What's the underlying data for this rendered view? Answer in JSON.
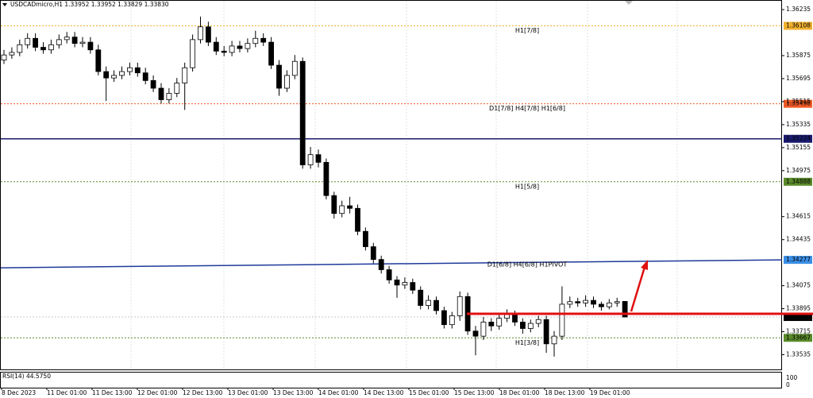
{
  "chart_data": {
    "type": "candlestick",
    "title": "USDCADmicro,H1  1.33952 1.33952 1.33829 1.33830",
    "open": [
      1.3584,
      1.3588,
      1.359,
      1.3596,
      1.3601,
      1.3594,
      1.3592,
      1.3596,
      1.36,
      1.3602,
      1.3597,
      1.3598,
      1.3592,
      1.3575,
      1.357,
      1.3572,
      1.3575,
      1.3578,
      1.3574,
      1.3568,
      1.3562,
      1.3553,
      1.3558,
      1.3566,
      1.3578,
      1.36,
      1.361,
      1.3598,
      1.3591,
      1.359,
      1.3595,
      1.3593,
      1.3597,
      1.3601,
      1.3598,
      1.358,
      1.3562,
      1.3572,
      1.3583,
      1.3502,
      1.351,
      1.3504,
      1.3478,
      1.3464,
      1.347,
      1.3468,
      1.345,
      1.3438,
      1.3428,
      1.342,
      1.3412,
      1.3408,
      1.341,
      1.3404,
      1.3392,
      1.3396,
      1.3388,
      1.3377,
      1.3384,
      1.3399,
      1.3372,
      1.3368,
      1.3379,
      1.3376,
      1.3382,
      1.3385,
      1.3379,
      1.3374,
      1.3378,
      1.3381,
      1.3362,
      1.3368,
      1.3393,
      1.3395,
      1.3394,
      1.3396,
      1.3393,
      1.3391,
      1.3394,
      1.33952
    ],
    "high": [
      1.3592,
      1.3594,
      1.36,
      1.3605,
      1.3605,
      1.3598,
      1.36,
      1.3604,
      1.3606,
      1.3606,
      1.3602,
      1.3602,
      1.3596,
      1.3579,
      1.3576,
      1.3579,
      1.3582,
      1.3582,
      1.3578,
      1.3572,
      1.3566,
      1.3562,
      1.357,
      1.3582,
      1.3604,
      1.3618,
      1.3614,
      1.3602,
      1.3595,
      1.3599,
      1.3599,
      1.3601,
      1.3607,
      1.3605,
      1.3602,
      1.3584,
      1.3576,
      1.3588,
      1.3586,
      1.3516,
      1.3514,
      1.3507,
      1.3481,
      1.3474,
      1.3477,
      1.3471,
      1.3453,
      1.3441,
      1.3431,
      1.3423,
      1.3415,
      1.3414,
      1.3413,
      1.3407,
      1.34,
      1.3399,
      1.3391,
      1.3387,
      1.3403,
      1.3402,
      1.3376,
      1.3383,
      1.3382,
      1.3386,
      1.3389,
      1.3388,
      1.3382,
      1.3381,
      1.3384,
      1.3384,
      1.3372,
      1.3407,
      1.3399,
      1.3398,
      1.34,
      1.3399,
      1.3395,
      1.3397,
      1.3398,
      1.33952
    ],
    "low": [
      1.3581,
      1.3585,
      1.3587,
      1.3593,
      1.3591,
      1.3589,
      1.3589,
      1.3593,
      1.3597,
      1.3594,
      1.3594,
      1.3589,
      1.3572,
      1.3552,
      1.3567,
      1.3569,
      1.3572,
      1.3571,
      1.3565,
      1.3559,
      1.355,
      1.355,
      1.3555,
      1.3545,
      1.3575,
      1.3597,
      1.3595,
      1.3588,
      1.3587,
      1.3587,
      1.359,
      1.359,
      1.3594,
      1.3595,
      1.3577,
      1.3556,
      1.3559,
      1.3569,
      1.3499,
      1.3499,
      1.35,
      1.3475,
      1.346,
      1.3461,
      1.3464,
      1.3447,
      1.3435,
      1.3425,
      1.3417,
      1.3409,
      1.3398,
      1.3405,
      1.3401,
      1.3389,
      1.3389,
      1.3385,
      1.3374,
      1.3374,
      1.338,
      1.3369,
      1.3353,
      1.3365,
      1.3372,
      1.3373,
      1.3379,
      1.3376,
      1.337,
      1.3371,
      1.3375,
      1.3355,
      1.3352,
      1.3365,
      1.339,
      1.3391,
      1.3391,
      1.339,
      1.3388,
      1.3389,
      1.3391,
      1.33829
    ],
    "close": [
      1.3588,
      1.359,
      1.3596,
      1.3601,
      1.3594,
      1.3592,
      1.3596,
      1.36,
      1.3602,
      1.3597,
      1.3598,
      1.3592,
      1.3575,
      1.357,
      1.3572,
      1.3575,
      1.3578,
      1.3574,
      1.3568,
      1.3562,
      1.3553,
      1.3558,
      1.3566,
      1.3578,
      1.36,
      1.361,
      1.3598,
      1.3591,
      1.359,
      1.3595,
      1.3593,
      1.3597,
      1.3601,
      1.3598,
      1.358,
      1.3562,
      1.3572,
      1.3583,
      1.3502,
      1.351,
      1.3504,
      1.3478,
      1.3464,
      1.347,
      1.3468,
      1.345,
      1.3438,
      1.3428,
      1.342,
      1.3412,
      1.3408,
      1.341,
      1.3404,
      1.3392,
      1.3396,
      1.3388,
      1.3377,
      1.3384,
      1.3399,
      1.3372,
      1.3368,
      1.3379,
      1.3376,
      1.3382,
      1.3385,
      1.3379,
      1.3374,
      1.3378,
      1.3381,
      1.3362,
      1.3368,
      1.3393,
      1.3395,
      1.3394,
      1.3396,
      1.3393,
      1.3391,
      1.3394,
      1.3395,
      1.3383
    ],
    "ylim": [
      1.3342,
      1.3631
    ],
    "yticks": [
      1.36235,
      1.35875,
      1.35695,
      1.35515,
      1.35335,
      1.35155,
      1.34975,
      1.34615,
      1.34435,
      1.34075,
      1.33895,
      1.33715,
      1.33535
    ],
    "x_labels": [
      "8 Dec 2023",
      "11 Dec 01:00",
      "11 Dec 13:00",
      "12 Dec 01:00",
      "12 Dec 13:00",
      "13 Dec 01:00",
      "13 Dec 13:00",
      "14 Dec 01:00",
      "14 Dec 13:00",
      "15 Dec 01:00",
      "15 Dec 13:00",
      "18 Dec 01:00",
      "18 Dec 13:00",
      "19 Dec 01:00"
    ],
    "levels": [
      {
        "value": 1.36108,
        "name": "H1[7/8]",
        "color": "#f0b030",
        "style": "dotted"
      },
      {
        "value": 1.35498,
        "name": "D1[7/8] H4[7/8] H1[6/8]",
        "color": "#f05a28",
        "style": "dotted"
      },
      {
        "value": 1.35224,
        "color": "#1a1a6e",
        "style": "solid"
      },
      {
        "value": 1.34888,
        "name": "H1[5/8]",
        "color": "#5a8a2a",
        "style": "dotted"
      },
      {
        "value": 1.34277,
        "from": 1.34215,
        "name": "D1[6/8] H4[6/8] H1PIVOT",
        "color": "#3a8ee6",
        "line_color": "#1f3a9a",
        "style": "solid"
      },
      {
        "value": 1.3383,
        "label": "1.33830",
        "color": "#000000",
        "line_color": "#c8c8c8",
        "style": "dotted"
      },
      {
        "value": 1.33667,
        "name": "H1[3/8]",
        "color": "#5a8a2a",
        "style": "dotted"
      }
    ],
    "indicator": {
      "label": "RSI(14) 44.5750",
      "yticks": [
        100,
        0
      ]
    }
  }
}
